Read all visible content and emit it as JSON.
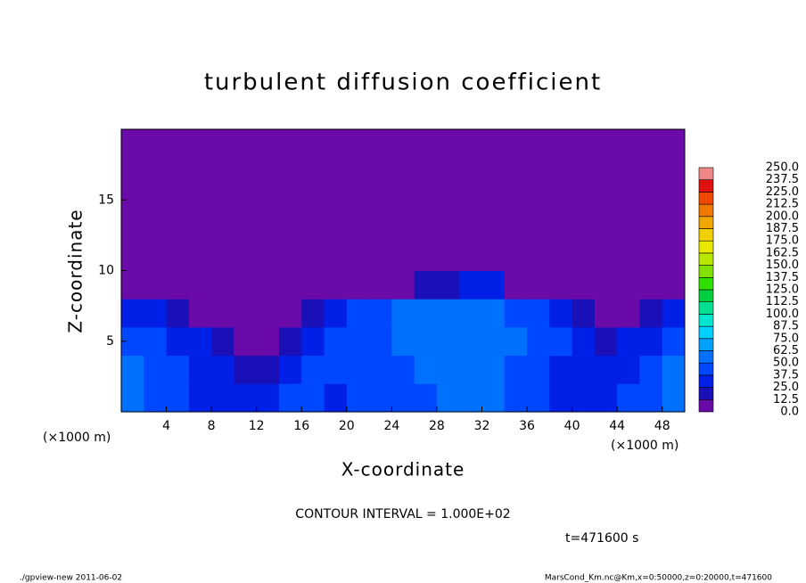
{
  "chart_data": {
    "type": "heatmap",
    "title": "turbulent diffusion coefficient",
    "xlabel": "X-coordinate",
    "ylabel": "Z-coordinate",
    "x_unit": "(×1000 m)",
    "y_unit": "(×1000 m)",
    "annotation": "CONTOUR INTERVAL = 1.000E+02",
    "time_label": "t=471600 s",
    "footer_left": "./gpview-new  2011-06-02",
    "footer_right": "MarsCond_Km.nc@Km,x=0:50000,z=0:20000,t=471600",
    "xlim": [
      0,
      50
    ],
    "ylim": [
      0,
      20
    ],
    "xticks": [
      4,
      8,
      12,
      16,
      20,
      24,
      28,
      32,
      36,
      40,
      44,
      48
    ],
    "yticks": [
      5,
      10,
      15
    ],
    "x": [
      1,
      3,
      5,
      7,
      9,
      11,
      13,
      15,
      17,
      19,
      21,
      23,
      25,
      27,
      29,
      31,
      33,
      35,
      37,
      39,
      41,
      43,
      45,
      47,
      49
    ],
    "z": [
      1,
      3,
      5,
      7,
      9,
      11,
      13,
      15,
      17,
      19
    ],
    "values": [
      [
        55,
        45,
        40,
        35,
        30,
        35,
        30,
        40,
        40,
        35,
        40,
        45,
        40,
        45,
        50,
        55,
        50,
        45,
        40,
        35,
        30,
        35,
        40,
        45,
        55
      ],
      [
        50,
        45,
        40,
        35,
        25,
        20,
        15,
        30,
        40,
        40,
        45,
        40,
        45,
        50,
        55,
        60,
        55,
        45,
        40,
        30,
        25,
        30,
        35,
        40,
        50
      ],
      [
        45,
        40,
        35,
        30,
        20,
        10,
        5,
        15,
        35,
        40,
        45,
        45,
        50,
        55,
        55,
        60,
        55,
        50,
        45,
        40,
        30,
        20,
        25,
        35,
        45
      ],
      [
        30,
        25,
        20,
        10,
        5,
        0,
        0,
        5,
        15,
        35,
        40,
        45,
        50,
        60,
        50,
        55,
        50,
        45,
        40,
        35,
        20,
        5,
        10,
        15,
        25
      ],
      [
        0,
        0,
        0,
        0,
        0,
        0,
        0,
        0,
        0,
        0,
        0,
        0,
        5,
        15,
        20,
        30,
        25,
        10,
        0,
        0,
        0,
        0,
        0,
        0,
        0
      ],
      [
        0,
        0,
        0,
        0,
        0,
        0,
        0,
        0,
        0,
        0,
        0,
        0,
        0,
        0,
        0,
        0,
        0,
        0,
        0,
        0,
        0,
        0,
        0,
        0,
        0
      ],
      [
        0,
        0,
        0,
        0,
        0,
        0,
        0,
        0,
        0,
        0,
        0,
        0,
        0,
        0,
        0,
        0,
        0,
        0,
        0,
        0,
        0,
        0,
        0,
        0,
        0
      ],
      [
        0,
        0,
        0,
        0,
        0,
        0,
        0,
        0,
        0,
        0,
        0,
        0,
        0,
        0,
        0,
        0,
        0,
        0,
        0,
        0,
        0,
        0,
        0,
        0,
        0
      ],
      [
        0,
        0,
        0,
        0,
        0,
        0,
        0,
        0,
        0,
        0,
        0,
        0,
        0,
        0,
        0,
        0,
        0,
        0,
        0,
        0,
        0,
        0,
        0,
        0,
        0
      ],
      [
        0,
        0,
        0,
        0,
        0,
        0,
        0,
        0,
        0,
        0,
        0,
        0,
        0,
        0,
        0,
        0,
        0,
        0,
        0,
        0,
        0,
        0,
        0,
        0,
        0
      ]
    ],
    "levels": [
      {
        "value": 0,
        "label": "0.0"
      },
      {
        "value": 12.5,
        "label": "12.5"
      },
      {
        "value": 25,
        "label": "25.0"
      },
      {
        "value": 37.5,
        "label": "37.5"
      },
      {
        "value": 50,
        "label": "50.0"
      },
      {
        "value": 62.5,
        "label": "62.5"
      },
      {
        "value": 75,
        "label": "75.0"
      },
      {
        "value": 87.5,
        "label": "87.5"
      },
      {
        "value": 100,
        "label": "100.0"
      },
      {
        "value": 112.5,
        "label": "112.5"
      },
      {
        "value": 125,
        "label": "125.0"
      },
      {
        "value": 137.5,
        "label": "137.5"
      },
      {
        "value": 150,
        "label": "150.0"
      },
      {
        "value": 162.5,
        "label": "162.5"
      },
      {
        "value": 175,
        "label": "175.0"
      },
      {
        "value": 187.5,
        "label": "187.5"
      },
      {
        "value": 200,
        "label": "200.0"
      },
      {
        "value": 212.5,
        "label": "212.5"
      },
      {
        "value": 225,
        "label": "225.0"
      },
      {
        "value": 237.5,
        "label": "237.5"
      },
      {
        "value": 250,
        "label": "250.0"
      }
    ],
    "colors": [
      "#6a0aa8",
      "#1a10b8",
      "#0020e8",
      "#0048ff",
      "#0070ff",
      "#00a0ff",
      "#00d0ff",
      "#00e8d0",
      "#00e090",
      "#00d040",
      "#30e000",
      "#80e000",
      "#b8e800",
      "#e8e800",
      "#f0d000",
      "#f0a800",
      "#f07800",
      "#f04800",
      "#e01010",
      "#f08888"
    ]
  }
}
